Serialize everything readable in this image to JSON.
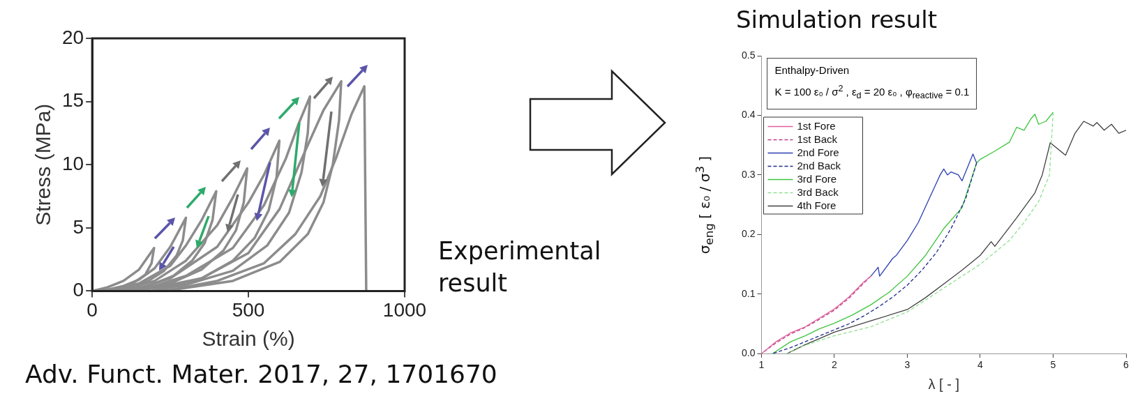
{
  "chart_data": [
    {
      "type": "line",
      "xlabel": "Strain (%)",
      "ylabel": "Stress (MPa)",
      "annotations": [
        "Experimental result",
        "Adv. Funct. Mater. 2017, 27, 1701670"
      ],
      "xlim": [
        0,
        1000
      ],
      "ylim": [
        0,
        20
      ],
      "xticks": [
        0,
        500,
        1000
      ],
      "yticks": [
        0,
        5,
        10,
        15,
        20
      ],
      "series": [
        {
          "color": "#8c8c8c",
          "x": [
            0,
            50,
            100,
            150,
            198,
            190,
            170,
            130,
            80,
            30
          ],
          "values": [
            0,
            0.3,
            0.8,
            1.7,
            3.4,
            2.2,
            1.3,
            0.6,
            0.2,
            0
          ]
        },
        {
          "color": "#8c8c8c",
          "x": [
            30,
            100,
            150,
            200,
            250,
            300,
            290,
            270,
            230,
            180,
            120,
            60
          ],
          "values": [
            0,
            0.4,
            0.9,
            1.8,
            3.5,
            5.8,
            4.0,
            2.8,
            1.6,
            0.8,
            0.3,
            0
          ]
        },
        {
          "color": "#8c8c8c",
          "x": [
            60,
            150,
            250,
            300,
            350,
            397,
            385,
            360,
            320,
            260,
            180,
            90
          ],
          "values": [
            0,
            0.6,
            2.0,
            3.6,
            5.6,
            7.9,
            5.6,
            3.8,
            2.4,
            1.2,
            0.4,
            0
          ]
        },
        {
          "color": "#8c8c8c",
          "x": [
            90,
            200,
            300,
            400,
            450,
            496,
            485,
            460,
            420,
            350,
            250,
            120
          ],
          "values": [
            0,
            0.8,
            2.4,
            5.2,
            7.4,
            9.7,
            7.0,
            4.8,
            3.2,
            1.7,
            0.6,
            0
          ]
        },
        {
          "color": "#8c8c8c",
          "x": [
            120,
            250,
            400,
            500,
            550,
            599,
            590,
            565,
            520,
            450,
            350,
            150
          ],
          "values": [
            0,
            1.0,
            3.5,
            7.0,
            9.2,
            11.9,
            9.0,
            6.4,
            4.2,
            2.4,
            1.0,
            0
          ]
        },
        {
          "color": "#8c8c8c",
          "x": [
            150,
            300,
            450,
            550,
            620,
            660,
            697,
            690,
            670,
            630,
            560,
            450,
            300,
            190
          ],
          "values": [
            0,
            1.2,
            3.4,
            6.8,
            10.5,
            13.2,
            15.4,
            12.5,
            9.4,
            6.2,
            3.6,
            1.6,
            0.5,
            0
          ]
        },
        {
          "color": "#8c8c8c",
          "x": [
            190,
            350,
            500,
            600,
            680,
            740,
            797,
            790,
            770,
            740,
            690,
            600,
            450,
            230
          ],
          "values": [
            0,
            1.0,
            3.0,
            6.5,
            11.0,
            14.3,
            16.6,
            13.5,
            10.0,
            7.0,
            4.5,
            2.3,
            0.8,
            0
          ]
        },
        {
          "color": "#8c8c8c",
          "x": [
            230,
            400,
            550,
            650,
            730,
            780,
            830,
            871,
            877
          ],
          "values": [
            0,
            0.8,
            2.2,
            4.5,
            7.5,
            10.5,
            14.0,
            16.2,
            0
          ]
        }
      ]
    },
    {
      "type": "line",
      "title": "Simulation result",
      "xlabel": "λ [ - ]",
      "ylabel": "σ$_{eng}$ [ ε₀ / σ$^{3}$ ]",
      "annotations": [
        "Enthalpy-Driven",
        "K = 100 ε₀ / σ$^{2}$ ,  ε$_{d}$ = 20 ε₀ ,  φ$_{reactive}$ = 0.1"
      ],
      "xlim": [
        1,
        6
      ],
      "ylim": [
        0,
        0.5
      ],
      "xticks": [
        1,
        2,
        3,
        4,
        5,
        6
      ],
      "yticks": [
        {
          "value": 0,
          "label": "0.0"
        },
        {
          "value": 0.1,
          "label": "0.1"
        },
        {
          "value": 0.2,
          "label": "0.2"
        },
        {
          "value": 0.3,
          "label": "0.3"
        },
        {
          "value": 0.4,
          "label": "0.4"
        },
        {
          "value": 0.5,
          "label": "0.5"
        }
      ],
      "legend": "top left",
      "series": [
        {
          "name": "1st Fore",
          "color": "#e0609a",
          "line_style": "solid",
          "x": [
            1,
            1.2,
            1.4,
            1.6,
            1.8,
            2.0,
            2.2,
            2.4,
            2.5
          ],
          "values": [
            0,
            0.02,
            0.035,
            0.045,
            0.06,
            0.075,
            0.095,
            0.12,
            0.13
          ]
        },
        {
          "name": "1st Back",
          "color": "#c03a8a",
          "line_style": "dashed",
          "x": [
            2.5,
            2.4,
            2.2,
            2.0,
            1.8,
            1.6,
            1.4,
            1.2,
            1.0
          ],
          "values": [
            0.13,
            0.118,
            0.093,
            0.073,
            0.058,
            0.044,
            0.033,
            0.018,
            0
          ]
        },
        {
          "name": "2nd Fore",
          "color": "#2a3fb0",
          "line_style": "solid",
          "x": [
            2.5,
            2.6,
            2.62,
            2.8,
            2.85,
            3.0,
            3.15,
            3.3,
            3.45,
            3.5,
            3.55,
            3.6,
            3.7,
            3.75,
            3.85,
            3.9,
            3.95
          ],
          "values": [
            0.13,
            0.145,
            0.13,
            0.16,
            0.165,
            0.19,
            0.22,
            0.26,
            0.3,
            0.31,
            0.3,
            0.305,
            0.3,
            0.29,
            0.32,
            0.335,
            0.32
          ]
        },
        {
          "name": "2nd Back",
          "color": "#1e2a8a",
          "line_style": "dashed",
          "x": [
            3.95,
            3.8,
            3.6,
            3.4,
            3.2,
            3.0,
            2.8,
            2.6,
            2.4,
            2.2,
            2.0,
            1.8,
            1.6,
            1.4,
            1.15
          ],
          "values": [
            0.32,
            0.26,
            0.21,
            0.17,
            0.14,
            0.115,
            0.095,
            0.078,
            0.063,
            0.05,
            0.04,
            0.03,
            0.02,
            0.01,
            0
          ]
        },
        {
          "name": "3rd Fore",
          "color": "#3ec43e",
          "line_style": "solid",
          "x": [
            1.15,
            1.4,
            1.6,
            1.8,
            2.0,
            2.25,
            2.5,
            2.75,
            3.0,
            3.25,
            3.5,
            3.75,
            3.95,
            4.0,
            4.2,
            4.4,
            4.5,
            4.6,
            4.7,
            4.75,
            4.8,
            4.9,
            5.0
          ],
          "values": [
            0,
            0.02,
            0.03,
            0.042,
            0.051,
            0.065,
            0.082,
            0.103,
            0.13,
            0.165,
            0.21,
            0.245,
            0.32,
            0.326,
            0.34,
            0.355,
            0.38,
            0.375,
            0.395,
            0.402,
            0.385,
            0.39,
            0.405
          ]
        },
        {
          "name": "3rd Back",
          "color": "#90e090",
          "line_style": "dashed",
          "x": [
            5.0,
            4.95,
            4.8,
            4.6,
            4.4,
            4.2,
            4.0,
            3.5,
            3.0,
            2.5,
            2.0,
            1.5,
            1.35
          ],
          "values": [
            0.405,
            0.3,
            0.255,
            0.22,
            0.19,
            0.17,
            0.15,
            0.11,
            0.07,
            0.045,
            0.03,
            0.01,
            0
          ]
        },
        {
          "name": "4th Fore",
          "color": "#404040",
          "line_style": "solid",
          "x": [
            1.35,
            1.6,
            2.0,
            2.5,
            3.0,
            3.25,
            3.5,
            3.75,
            4.0,
            4.15,
            4.2,
            4.5,
            4.75,
            4.85,
            4.96,
            5.17,
            5.3,
            5.42,
            5.55,
            5.6,
            5.7,
            5.8,
            5.9,
            6.0
          ],
          "values": [
            0,
            0.015,
            0.036,
            0.055,
            0.074,
            0.094,
            0.117,
            0.14,
            0.165,
            0.188,
            0.18,
            0.228,
            0.27,
            0.3,
            0.354,
            0.333,
            0.37,
            0.39,
            0.382,
            0.388,
            0.375,
            0.385,
            0.37,
            0.375
          ]
        }
      ]
    }
  ]
}
